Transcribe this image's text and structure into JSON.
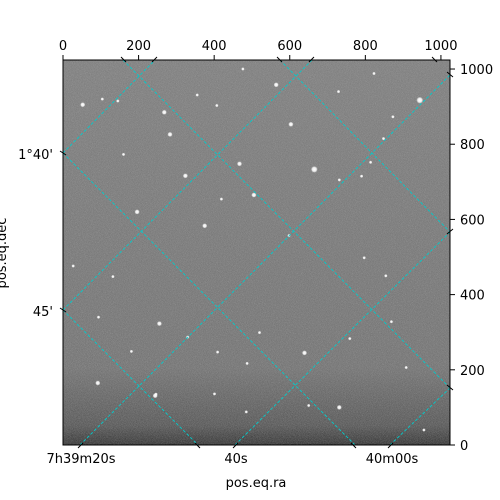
{
  "chart_data": {
    "type": "image",
    "description_of_content": "grayscale star field with WCS coordinate grid overlay",
    "pixel_axes": {
      "x": {
        "range": [
          0,
          1024
        ],
        "ticks": [
          0,
          200,
          400,
          600,
          800,
          1000
        ],
        "position": "top"
      },
      "y": {
        "range": [
          0,
          1024
        ],
        "ticks": [
          0,
          200,
          400,
          600,
          800,
          1000
        ],
        "position": "right"
      }
    },
    "world_axes": {
      "ra": {
        "label": "pos.eq.ra",
        "tick_labels": [
          "7h39m20s",
          "40s",
          "40m00s"
        ]
      },
      "dec": {
        "label": "pos.eq.dec",
        "tick_labels": [
          "1°40'",
          "45'"
        ]
      }
    },
    "grid_color": "#00cccc",
    "image_background": "#6e6e6e",
    "stars": [
      [
        52,
        905,
        3
      ],
      [
        145,
        915,
        2
      ],
      [
        268,
        885,
        3
      ],
      [
        407,
        903,
        2
      ],
      [
        564,
        958,
        3
      ],
      [
        603,
        853,
        3
      ],
      [
        729,
        940,
        2
      ],
      [
        873,
        873,
        2
      ],
      [
        944,
        917,
        4
      ],
      [
        283,
        826,
        3
      ],
      [
        467,
        748,
        3
      ],
      [
        160,
        773,
        2
      ],
      [
        324,
        716,
        3
      ],
      [
        419,
        654,
        2
      ],
      [
        505,
        665,
        3
      ],
      [
        665,
        733,
        4
      ],
      [
        731,
        705,
        2
      ],
      [
        790,
        715,
        2
      ],
      [
        814,
        752,
        2
      ],
      [
        848,
        815,
        2
      ],
      [
        196,
        620,
        3
      ],
      [
        27,
        476,
        2
      ],
      [
        132,
        448,
        2
      ],
      [
        375,
        583,
        3
      ],
      [
        598,
        557,
        2
      ],
      [
        797,
        498,
        2
      ],
      [
        854,
        450,
        2
      ],
      [
        255,
        323,
        3
      ],
      [
        94,
        340,
        2
      ],
      [
        330,
        287,
        2
      ],
      [
        520,
        299,
        2
      ],
      [
        639,
        245,
        3
      ],
      [
        759,
        283,
        2
      ],
      [
        869,
        328,
        2
      ],
      [
        181,
        249,
        2
      ],
      [
        409,
        247,
        2
      ],
      [
        487,
        217,
        2
      ],
      [
        92,
        165,
        3
      ],
      [
        246,
        135,
        2
      ],
      [
        244,
        131,
        3
      ],
      [
        401,
        136,
        2
      ],
      [
        485,
        88,
        2
      ],
      [
        731,
        100,
        3
      ],
      [
        908,
        206,
        2
      ],
      [
        650,
        105,
        2
      ],
      [
        955,
        40,
        2
      ],
      [
        104,
        920,
        2
      ],
      [
        355,
        931,
        2
      ],
      [
        476,
        1000,
        2
      ],
      [
        823,
        988,
        2
      ]
    ]
  }
}
